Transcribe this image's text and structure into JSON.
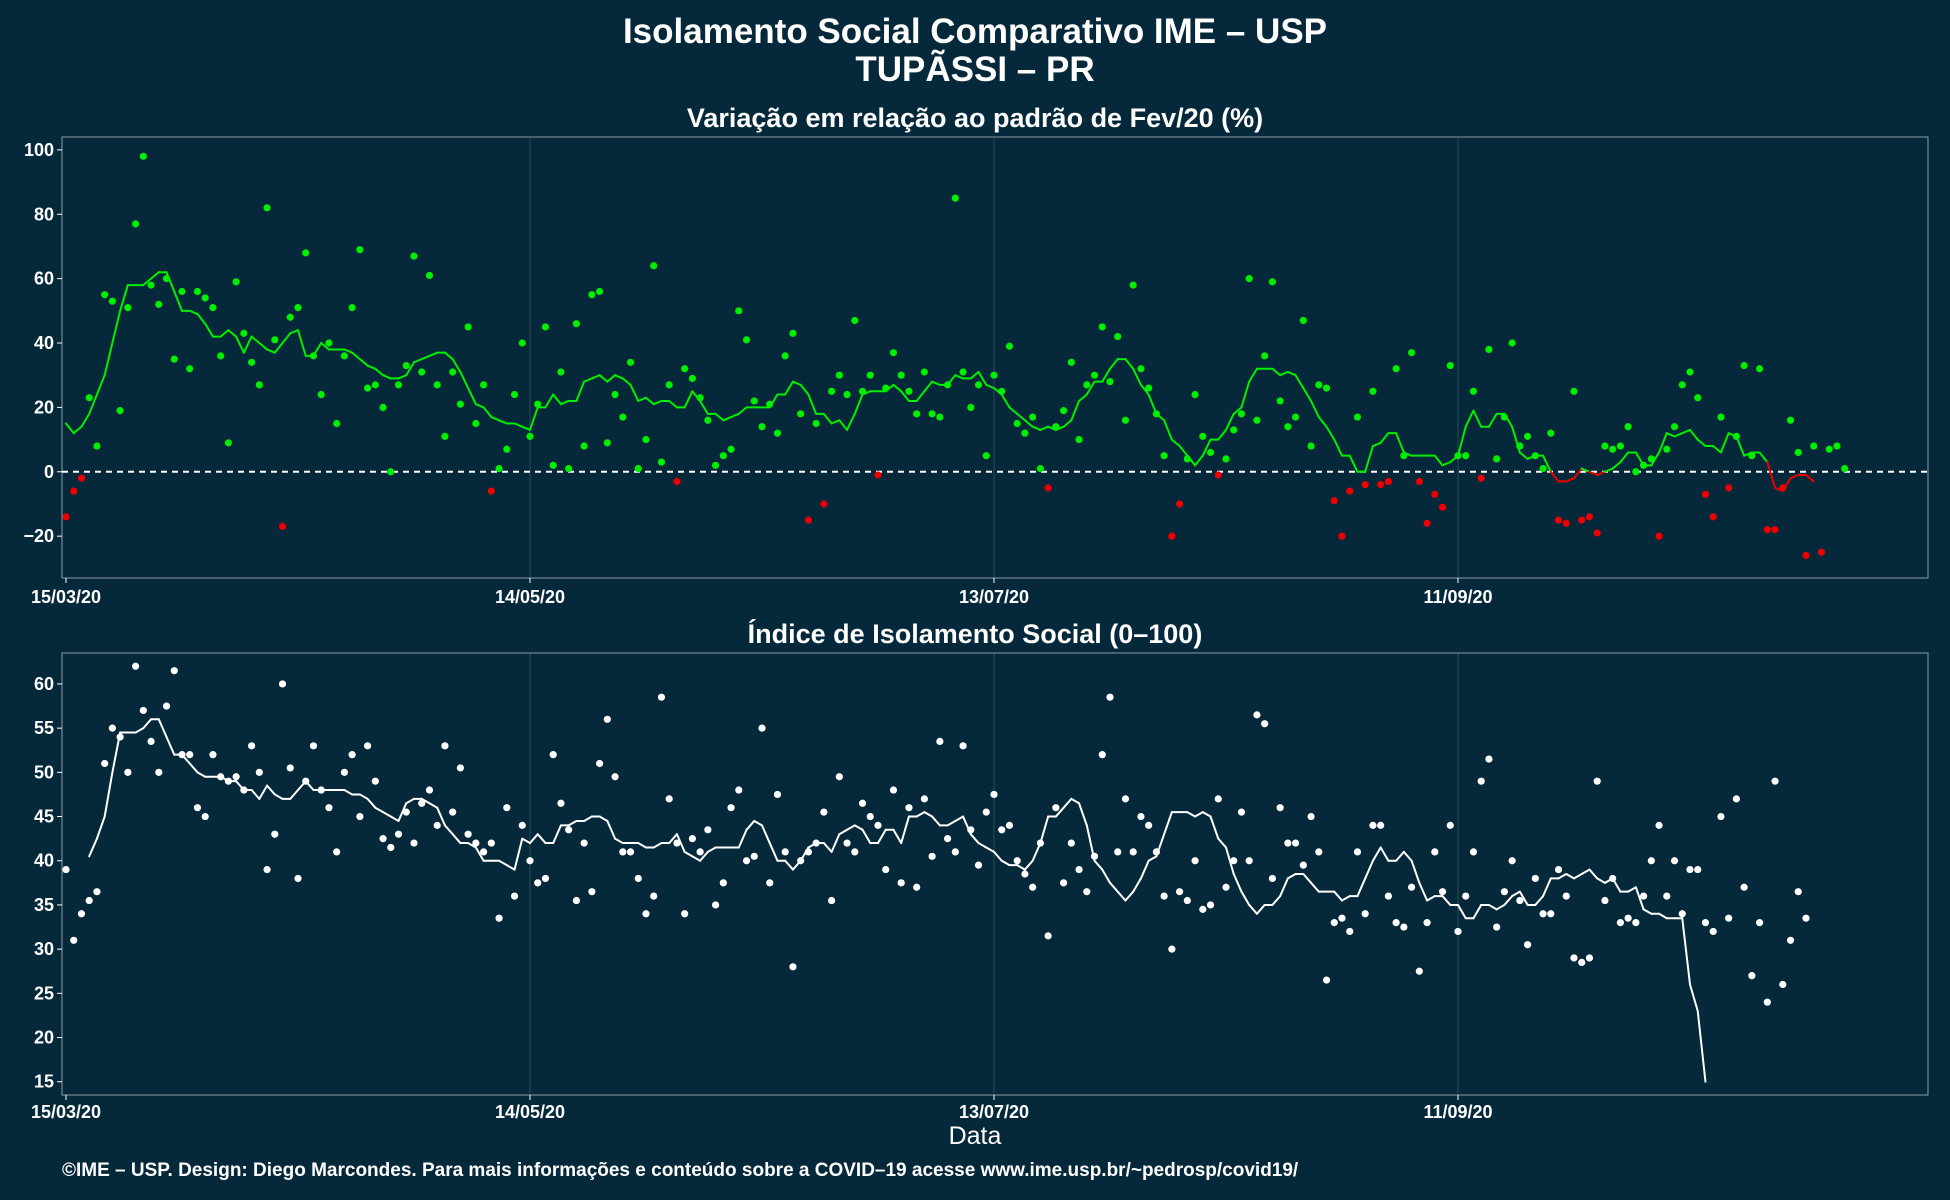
{
  "titles": {
    "main": "Isolamento Social Comparativo IME – USP",
    "location": "TUPÃSSI – PR",
    "panel1": "Variação em relação ao padrão de Fev/20 (%)",
    "panel2": "Índice de Isolamento Social (0–100)",
    "xlabel": "Data",
    "footer": "©IME – USP. Design: Diego Marcondes. Para mais informações e conteúdo sobre a COVID–19 acesse www.ime.usp.br/~pedrosp/covid19/"
  },
  "colors": {
    "background": "#05283a",
    "positive": "#00ee00",
    "negative": "#ee0000",
    "index": "#ffffff",
    "grid": "#2c4a57",
    "zero_line": "#ffffff"
  },
  "chart_data": [
    {
      "type": "scatter",
      "title": "Variação em relação ao padrão de Fev/20 (%)",
      "xlabel": "",
      "ylabel": "",
      "x_start": "15/03/20",
      "x_tick_labels": [
        "15/03/20",
        "14/05/20",
        "13/07/20",
        "11/09/20"
      ],
      "x_tick_days": [
        0,
        60,
        120,
        180
      ],
      "ylim": [
        -33,
        104
      ],
      "y_ticks": [
        -20,
        0,
        20,
        40,
        60,
        80,
        100
      ],
      "reference_line": 0,
      "series": [
        {
          "style": "points",
          "values": [
            -14,
            -6,
            -2,
            23,
            8,
            55,
            53,
            19,
            51,
            77,
            98,
            58,
            52,
            60,
            35,
            56,
            32,
            56,
            54,
            51,
            36,
            9,
            59,
            43,
            34,
            27,
            82,
            41,
            -17,
            48,
            51,
            68,
            36,
            24,
            40,
            15,
            36,
            51,
            69,
            26,
            27,
            20,
            0,
            27,
            33,
            67,
            31,
            61,
            27,
            11,
            31,
            21,
            45,
            15,
            27,
            -6,
            1,
            7,
            24,
            40,
            11,
            21,
            45,
            2,
            31,
            1,
            46,
            8,
            55,
            56,
            9,
            24,
            17,
            34,
            1,
            10,
            64,
            3,
            27,
            -3,
            32,
            29,
            23,
            16,
            2,
            5,
            7,
            50,
            41,
            22,
            14,
            21,
            12,
            36,
            43,
            18,
            -15,
            15,
            -10,
            25,
            30,
            24,
            47,
            25,
            30,
            -1,
            26,
            37,
            30,
            25,
            18,
            31,
            18,
            17,
            27,
            85,
            31,
            20,
            27,
            5,
            30,
            25,
            39,
            15,
            12,
            17,
            1,
            -5,
            14,
            19,
            34,
            10,
            27,
            30,
            45,
            28,
            42,
            16,
            58,
            32,
            26,
            18,
            5,
            -20,
            -10,
            4,
            24,
            11,
            6,
            -1,
            4,
            13,
            18,
            60,
            16,
            36,
            59,
            22,
            14,
            17,
            47,
            8,
            27,
            26,
            -9,
            -20,
            -6,
            17,
            -4,
            25,
            -4,
            -3,
            32,
            5,
            37,
            -3,
            -16,
            -7,
            -11,
            33,
            5,
            5,
            25,
            -2,
            38,
            4,
            17,
            40,
            8,
            11,
            5,
            1,
            12,
            -15,
            -16,
            25,
            -15,
            -14,
            -19,
            8,
            7,
            8,
            14,
            0,
            2,
            4,
            -20,
            7,
            14,
            27,
            31,
            23,
            -7,
            -14,
            17,
            -5,
            11,
            33,
            5,
            32,
            -18,
            -18,
            -5,
            16,
            6,
            -26,
            8,
            -25,
            7,
            8,
            1
          ],
          "colors_by_sign": true
        },
        {
          "style": "line",
          "name_hint": "moving average",
          "values": [
            15,
            12,
            14,
            18,
            24,
            30,
            40,
            50,
            58,
            58,
            58,
            60,
            62,
            62,
            56,
            50,
            50,
            49,
            46,
            42,
            42,
            44,
            42,
            37,
            42,
            40,
            38,
            37,
            40,
            43,
            44,
            36,
            36,
            40,
            38,
            38,
            38,
            37,
            35,
            33,
            32,
            30,
            29,
            29,
            30,
            34,
            35,
            36,
            37,
            37,
            35,
            31,
            26,
            21,
            20,
            17,
            16,
            15,
            15,
            14,
            13,
            20,
            20,
            24,
            21,
            22,
            22,
            28,
            29,
            30,
            28,
            30,
            29,
            27,
            22,
            23,
            21,
            22,
            22,
            20,
            20,
            25,
            22,
            18,
            18,
            16,
            17,
            18,
            20,
            20,
            20,
            20,
            24,
            24,
            28,
            27,
            24,
            18,
            18,
            15,
            16,
            13,
            18,
            24,
            25,
            25,
            25,
            27,
            25,
            22,
            22,
            25,
            28,
            27,
            27,
            30,
            29,
            29,
            31,
            27,
            26,
            24,
            20,
            18,
            16,
            14,
            13,
            14,
            13,
            14,
            16,
            22,
            24,
            28,
            28,
            32,
            35,
            35,
            32,
            27,
            24,
            18,
            16,
            10,
            8,
            5,
            2,
            5,
            10,
            10,
            13,
            18,
            20,
            28,
            32,
            32,
            32,
            30,
            31,
            30,
            26,
            22,
            17,
            14,
            10,
            5,
            5,
            0,
            0,
            8,
            9,
            12,
            12,
            6,
            5,
            5,
            5,
            5,
            2,
            3,
            5,
            14,
            19,
            14,
            14,
            18,
            18,
            14,
            6,
            4,
            5,
            5,
            0,
            -3,
            -3,
            -2,
            1,
            0,
            -1,
            0,
            1,
            3,
            6,
            6,
            2,
            2,
            6,
            12,
            11,
            12,
            13,
            10,
            8,
            8,
            6,
            12,
            11,
            5,
            6,
            6,
            3,
            -5,
            -6,
            -2,
            -1,
            -1,
            -3
          ]
        }
      ]
    },
    {
      "type": "scatter",
      "title": "Índice de Isolamento Social (0–100)",
      "xlabel": "Data",
      "ylabel": "",
      "x_start": "15/03/20",
      "x_tick_labels": [
        "15/03/20",
        "14/05/20",
        "13/07/20",
        "11/09/20"
      ],
      "x_tick_days": [
        0,
        60,
        120,
        180
      ],
      "ylim": [
        13.5,
        63.5
      ],
      "y_ticks": [
        15,
        20,
        25,
        30,
        35,
        40,
        45,
        50,
        55,
        60
      ],
      "series": [
        {
          "style": "points",
          "values": [
            39,
            31,
            34,
            35.5,
            36.5,
            51,
            55,
            54,
            50,
            62,
            57,
            53.5,
            50,
            57.5,
            61.5,
            52,
            52,
            46,
            45,
            52,
            49.5,
            49,
            49.5,
            48,
            53,
            50,
            39,
            43,
            60,
            50.5,
            38,
            49,
            53,
            48,
            46,
            41,
            50,
            52,
            45,
            53,
            49,
            42.5,
            41.5,
            43,
            45.5,
            42,
            46.5,
            48,
            44,
            53,
            45.5,
            50.5,
            43,
            42,
            41,
            42,
            33.5,
            46,
            36,
            44,
            40,
            37.5,
            38,
            52,
            46.5,
            43.5,
            35.5,
            42,
            36.5,
            51,
            56,
            49.5,
            41,
            41,
            38,
            34,
            36,
            58.5,
            47,
            42,
            34,
            42.5,
            41,
            43.5,
            35,
            37.5,
            46,
            48,
            40,
            40.5,
            55,
            37.5,
            47.5,
            41,
            28,
            40,
            41,
            42,
            45.5,
            35.5,
            49.5,
            42,
            41,
            46.5,
            45,
            44,
            39,
            48,
            37.5,
            46,
            37,
            47,
            40.5,
            53.5,
            42.5,
            41,
            53,
            43.5,
            39.5,
            45.5,
            47.5,
            43.5,
            44,
            40,
            38.5,
            37,
            42,
            31.5,
            46,
            37.5,
            42,
            39,
            36.5,
            40.5,
            52,
            58.5,
            41,
            47,
            41,
            45,
            44,
            41,
            36,
            30,
            36.5,
            35.5,
            40,
            34.5,
            35,
            47,
            37,
            40,
            45.5,
            40,
            56.5,
            55.5,
            38,
            46,
            42,
            42,
            39.5,
            45,
            41,
            26.5,
            33,
            33.5,
            32,
            41,
            34,
            44,
            44,
            36,
            33,
            32.5,
            37,
            27.5,
            33,
            41,
            36.5,
            44,
            32,
            36,
            41,
            49,
            51.5,
            32.5,
            36.5,
            40,
            35.5,
            30.5,
            38,
            34,
            34,
            39,
            36,
            29,
            28.5,
            29,
            49,
            35.5,
            38,
            33,
            33.5,
            33,
            36,
            40,
            44,
            36,
            40,
            34,
            39,
            39,
            33,
            32,
            45,
            33.5,
            47,
            37,
            27,
            33,
            24,
            49,
            26,
            31,
            36.5,
            33.5
          ]
        },
        {
          "style": "line",
          "name_hint": "moving average",
          "start_day": 3,
          "values": [
            40.5,
            42.5,
            45,
            50,
            54.5,
            54.5,
            54.5,
            55,
            56,
            56,
            54,
            52,
            52,
            51,
            50,
            49.5,
            49.5,
            49.5,
            49,
            49,
            48,
            48,
            47,
            48.5,
            47.5,
            47,
            47,
            48,
            49,
            48,
            48,
            48,
            48,
            48,
            47.5,
            47.5,
            47,
            46,
            45.5,
            45,
            44.5,
            46.5,
            47,
            47,
            46.5,
            46,
            44,
            43,
            42,
            42,
            41.5,
            40,
            40,
            40,
            39.5,
            39,
            42.5,
            42,
            43,
            42,
            42,
            44,
            44,
            44.5,
            44.5,
            45,
            45,
            44.5,
            42.5,
            42,
            42,
            42,
            41.5,
            41.5,
            42,
            42,
            43,
            41,
            40.5,
            40,
            41,
            41.5,
            41.5,
            41.5,
            41.5,
            43.5,
            44.5,
            44,
            42,
            40,
            40,
            39,
            40,
            41.5,
            42,
            42,
            41,
            43,
            43.5,
            44,
            43.5,
            42,
            42,
            43.5,
            43.5,
            42,
            45,
            45,
            45.5,
            45,
            44,
            44,
            44.5,
            45,
            43,
            42,
            41.5,
            41,
            40,
            39.5,
            39.5,
            39,
            40,
            42,
            45,
            45,
            46,
            47,
            46.5,
            44,
            40,
            39,
            37.5,
            36.5,
            35.5,
            36.5,
            38,
            40,
            40.5,
            43,
            45.5,
            45.5,
            45.5,
            45,
            45.5,
            45,
            42.5,
            41.5,
            38.5,
            36.5,
            35,
            34,
            35,
            35,
            36,
            38,
            38.5,
            38.5,
            37.5,
            36.5,
            36.5,
            36.5,
            35.5,
            36,
            36,
            38,
            40,
            41.5,
            40,
            40,
            41,
            40,
            37.5,
            35.5,
            36,
            36,
            35,
            35,
            33.5,
            33.5,
            35,
            35,
            34.5,
            35,
            36,
            36.5,
            35,
            35,
            36,
            38,
            38,
            38.5,
            38,
            38.5,
            39,
            38,
            37.5,
            38,
            36.5,
            36.5,
            37,
            34.5,
            34,
            34,
            33.5,
            33.5,
            33.5,
            26,
            23,
            15
          ]
        }
      ]
    }
  ]
}
